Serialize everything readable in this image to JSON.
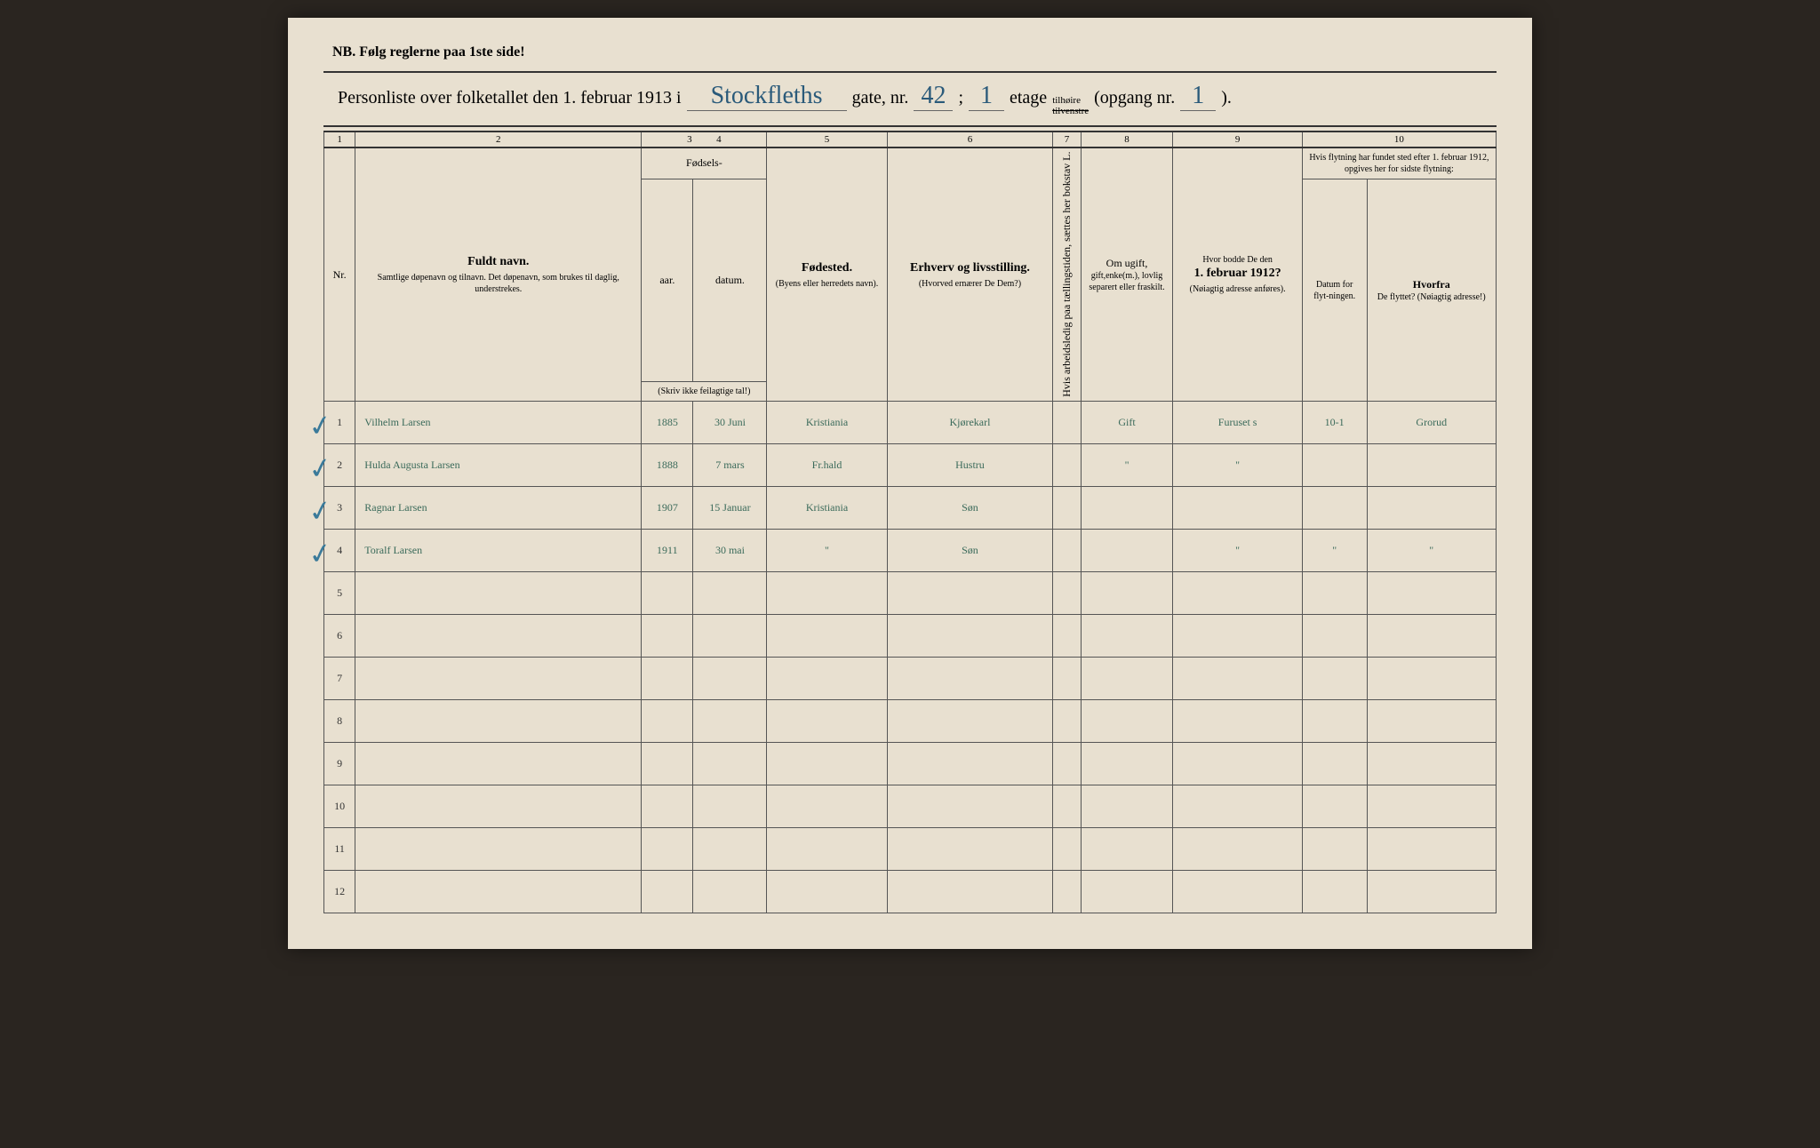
{
  "header": {
    "nb": "NB.  Følg reglerne paa 1ste side!",
    "title_prefix": "Personliste over folketallet den 1. februar 1913 i",
    "street_name": "Stockfleths",
    "gate_label": "gate, nr.",
    "gate_nr": "42",
    "semicolon": ";",
    "etage_nr": "1",
    "etage_label": "etage",
    "tilhoire": "tilhøire",
    "tilvenstre": "tilvenstre",
    "opgang_label": "(opgang nr.",
    "opgang_nr": "1",
    "opgang_close": ")."
  },
  "colnums": [
    "1",
    "2",
    "3",
    "4",
    "5",
    "6",
    "7",
    "8",
    "9",
    "10"
  ],
  "columns": {
    "nr": "Nr.",
    "name_bold": "Fuldt navn.",
    "name_small": "Samtlige døpenavn og tilnavn. Det døpenavn, som brukes til daglig, understrekes.",
    "fodsels": "Fødsels-",
    "aar": "aar.",
    "datum": "datum.",
    "skriv": "(Skriv ikke feilagtige tal!)",
    "fodested_bold": "Fødested.",
    "fodested_small": "(Byens eller herredets navn).",
    "erhverv_bold": "Erhverv og livsstilling.",
    "erhverv_small": "(Hvorved ernærer De Dem?)",
    "col7": "Hvis arbeidsledig paa tællingstiden, sættes her bokstav L.",
    "col8_top": "Om ugift,",
    "col8_rest": "gift,enke(m.), lovlig separert eller fraskilt.",
    "col9_top": "Hvor bodde De den",
    "col9_bold": "1. februar 1912?",
    "col9_small": "(Nøiagtig adresse anføres).",
    "col10_top": "Hvis flytning har fundet sted efter 1. februar 1912, opgives her for sidste flytning:",
    "col10a": "Datum for flyt-ningen.",
    "col10b_bold": "Hvorfra",
    "col10b_rest": " De flyttet? (Nøiagtig adresse!)"
  },
  "rows": [
    {
      "nr": "1",
      "check": true,
      "name": "Vilhelm Larsen",
      "year": "1885",
      "date": "30 Juni",
      "place": "Kristiania",
      "occ": "Kjørekarl",
      "c7": "",
      "c8": "Gift",
      "c9": "Furuset s",
      "c10a": "10-1",
      "c10b": "Grorud"
    },
    {
      "nr": "2",
      "check": true,
      "name": "Hulda Augusta Larsen",
      "year": "1888",
      "date": "7 mars",
      "place": "Fr.hald",
      "occ": "Hustru",
      "c7": "",
      "c8": "\"",
      "c9": "\"",
      "c10a": "",
      "c10b": ""
    },
    {
      "nr": "3",
      "check": true,
      "name": "Ragnar Larsen",
      "year": "1907",
      "date": "15 Januar",
      "place": "Kristiania",
      "occ": "Søn",
      "c7": "",
      "c8": "",
      "c9": "",
      "c10a": "",
      "c10b": ""
    },
    {
      "nr": "4",
      "check": true,
      "name": "Toralf Larsen",
      "year": "1911",
      "date": "30 mai",
      "place": "\"",
      "occ": "Søn",
      "c7": "",
      "c8": "",
      "c9": "\"",
      "c10a": "\"",
      "c10b": "\""
    },
    {
      "nr": "5",
      "check": false,
      "name": "",
      "year": "",
      "date": "",
      "place": "",
      "occ": "",
      "c7": "",
      "c8": "",
      "c9": "",
      "c10a": "",
      "c10b": ""
    },
    {
      "nr": "6",
      "check": false,
      "name": "",
      "year": "",
      "date": "",
      "place": "",
      "occ": "",
      "c7": "",
      "c8": "",
      "c9": "",
      "c10a": "",
      "c10b": ""
    },
    {
      "nr": "7",
      "check": false,
      "name": "",
      "year": "",
      "date": "",
      "place": "",
      "occ": "",
      "c7": "",
      "c8": "",
      "c9": "",
      "c10a": "",
      "c10b": ""
    },
    {
      "nr": "8",
      "check": false,
      "name": "",
      "year": "",
      "date": "",
      "place": "",
      "occ": "",
      "c7": "",
      "c8": "",
      "c9": "",
      "c10a": "",
      "c10b": ""
    },
    {
      "nr": "9",
      "check": false,
      "name": "",
      "year": "",
      "date": "",
      "place": "",
      "occ": "",
      "c7": "",
      "c8": "",
      "c9": "",
      "c10a": "",
      "c10b": ""
    },
    {
      "nr": "10",
      "check": false,
      "name": "",
      "year": "",
      "date": "",
      "place": "",
      "occ": "",
      "c7": "",
      "c8": "",
      "c9": "",
      "c10a": "",
      "c10b": ""
    },
    {
      "nr": "11",
      "check": false,
      "name": "",
      "year": "",
      "date": "",
      "place": "",
      "occ": "",
      "c7": "",
      "c8": "",
      "c9": "",
      "c10a": "",
      "c10b": ""
    },
    {
      "nr": "12",
      "check": false,
      "name": "",
      "year": "",
      "date": "",
      "place": "",
      "occ": "",
      "c7": "",
      "c8": "",
      "c9": "",
      "c10a": "",
      "c10b": ""
    }
  ],
  "colors": {
    "paper": "#e8e0d0",
    "ink_printed": "#333333",
    "ink_handwritten": "#3a6a5a",
    "ink_blue": "#2a5a7a",
    "border": "#555555"
  }
}
